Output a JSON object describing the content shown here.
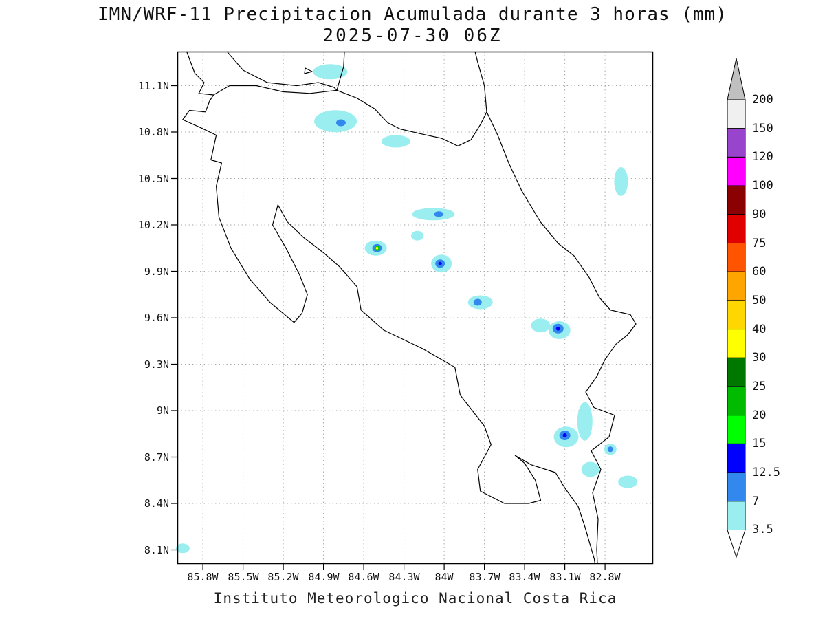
{
  "title": {
    "line1": "IMN/WRF-11 Precipitacion Acumulada durante 3 horas (mm)",
    "line2": "2025-07-30 06Z"
  },
  "footer": {
    "text": "Instituto Meteorologico Nacional Costa Rica"
  },
  "axes": {
    "lat": [
      "11.1N",
      "10.8N",
      "10.5N",
      "10.2N",
      "9.9N",
      "9.6N",
      "9.3N",
      "9N",
      "8.7N",
      "8.4N",
      "8.1N"
    ],
    "lon": [
      "85.8W",
      "85.5W",
      "85.2W",
      "84.9W",
      "84.6W",
      "84.3W",
      "84W",
      "83.7W",
      "83.4W",
      "83.1W",
      "82.8W"
    ]
  },
  "colorbar": {
    "labels": [
      "200",
      "150",
      "120",
      "100",
      "90",
      "75",
      "60",
      "50",
      "40",
      "30",
      "25",
      "20",
      "15",
      "12.5",
      "7",
      "3.5"
    ],
    "cap_top_color": "#c0c0c0",
    "cap_bottom_color": "#ffffff",
    "segment_colors": [
      "#f0f0f0",
      "#9944cc",
      "#ff00ff",
      "#8b0000",
      "#e10000",
      "#ff5500",
      "#ffa500",
      "#ffd700",
      "#ffff00",
      "#007800",
      "#00bb00",
      "#00ff00",
      "#0000ff",
      "#3388ee",
      "#9aeef0"
    ]
  },
  "palette": {
    "light": "#9aeef0",
    "medium": "#3388ee",
    "deep": "#0000ff",
    "green": "#00cc00",
    "yellow": "#ffff00"
  },
  "map": {
    "grid_color": "#a9a9a9",
    "coast_color": "#000000"
  },
  "precip": [
    {
      "lon": 84.85,
      "lat": 11.19,
      "level": "3.5-7"
    },
    {
      "lon": 84.81,
      "lat": 10.87,
      "level": "3.5-7"
    },
    {
      "lon": 84.36,
      "lat": 10.74,
      "level": "3.5-7"
    },
    {
      "lon": 82.68,
      "lat": 10.48,
      "level": "3.5-7"
    },
    {
      "lon": 84.08,
      "lat": 10.27,
      "level": "3.5-7"
    },
    {
      "lon": 84.51,
      "lat": 10.05,
      "level": "3.5-7"
    },
    {
      "lon": 84.2,
      "lat": 10.13,
      "level": "3.5-7"
    },
    {
      "lon": 84.02,
      "lat": 9.95,
      "level": "3.5-7"
    },
    {
      "lon": 83.73,
      "lat": 9.7,
      "level": "3.5-7"
    },
    {
      "lon": 83.28,
      "lat": 9.55,
      "level": "3.5-7"
    },
    {
      "lon": 83.14,
      "lat": 9.52,
      "level": "3.5-7"
    },
    {
      "lon": 82.95,
      "lat": 8.93,
      "level": "3.5-7"
    },
    {
      "lon": 83.09,
      "lat": 8.83,
      "level": "3.5-7"
    },
    {
      "lon": 82.76,
      "lat": 8.75,
      "level": "3.5-7"
    },
    {
      "lon": 82.91,
      "lat": 8.62,
      "level": "3.5-7"
    },
    {
      "lon": 82.63,
      "lat": 8.54,
      "level": "3.5-7"
    },
    {
      "lon": 85.95,
      "lat": 8.11,
      "level": "3.5-7"
    },
    {
      "lon": 84.77,
      "lat": 10.86,
      "level": "7-12.5"
    },
    {
      "lon": 84.04,
      "lat": 10.27,
      "level": "7-12.5"
    },
    {
      "lon": 84.5,
      "lat": 10.05,
      "level": "7-12.5"
    },
    {
      "lon": 84.03,
      "lat": 9.95,
      "level": "7-12.5"
    },
    {
      "lon": 83.75,
      "lat": 9.7,
      "level": "7-12.5"
    },
    {
      "lon": 83.15,
      "lat": 9.53,
      "level": "7-12.5"
    },
    {
      "lon": 83.1,
      "lat": 8.84,
      "level": "7-12.5"
    },
    {
      "lon": 82.76,
      "lat": 8.75,
      "level": "7-12.5"
    },
    {
      "lon": 84.03,
      "lat": 9.95,
      "level": "12.5-15"
    },
    {
      "lon": 83.15,
      "lat": 9.53,
      "level": "12.5-15"
    },
    {
      "lon": 83.1,
      "lat": 8.84,
      "level": "12.5-15"
    },
    {
      "lon": 84.5,
      "lat": 10.05,
      "level": "15-25"
    },
    {
      "lon": 84.5,
      "lat": 10.05,
      "level": "30-40"
    }
  ]
}
